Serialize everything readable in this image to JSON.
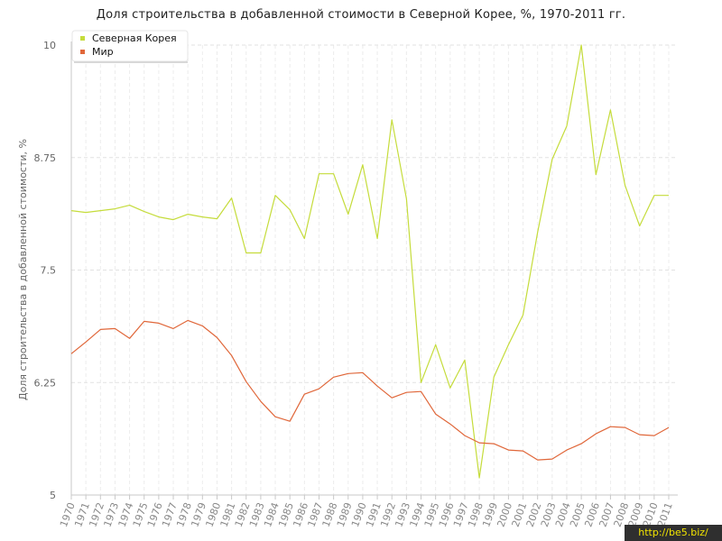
{
  "chart_data": {
    "type": "line",
    "title": "Доля строительства в добавленной стоимости в Северной Корее, %, 1970-2011 гг.",
    "ylabel": "Доля строительства в добавленной стоимости, %",
    "xlabel": "",
    "ylim": [
      5,
      10
    ],
    "yticks": [
      "5",
      "6.25",
      "7.5",
      "8.75",
      "10"
    ],
    "grid": true,
    "legend_position": "top-left",
    "categories": [
      "1970",
      "1971",
      "1972",
      "1973",
      "1974",
      "1975",
      "1976",
      "1977",
      "1978",
      "1979",
      "1980",
      "1981",
      "1982",
      "1983",
      "1984",
      "1985",
      "1986",
      "1987",
      "1988",
      "1989",
      "1990",
      "1991",
      "1992",
      "1993",
      "1994",
      "1995",
      "1996",
      "1997",
      "1998",
      "1999",
      "2000",
      "2001",
      "2002",
      "2003",
      "2004",
      "2005",
      "2006",
      "2007",
      "2008",
      "2009",
      "2010",
      "2011"
    ],
    "series": [
      {
        "name": "Северная Корея",
        "color": "#c5dc3b",
        "values": [
          8.16,
          8.14,
          8.16,
          8.18,
          8.22,
          8.15,
          8.09,
          8.06,
          8.12,
          8.09,
          8.07,
          8.3,
          7.69,
          7.69,
          8.33,
          8.17,
          7.85,
          8.57,
          8.57,
          8.12,
          8.67,
          7.85,
          9.17,
          8.29,
          6.25,
          6.67,
          6.19,
          6.5,
          5.19,
          6.31,
          6.67,
          7.0,
          7.92,
          8.73,
          9.1,
          10.0,
          8.56,
          9.28,
          8.44,
          7.99,
          8.33,
          8.33
        ]
      },
      {
        "name": "Мир",
        "color": "#e0673a",
        "values": [
          6.57,
          6.7,
          6.84,
          6.85,
          6.74,
          6.93,
          6.91,
          6.85,
          6.94,
          6.88,
          6.75,
          6.55,
          6.26,
          6.04,
          5.87,
          5.82,
          6.12,
          6.18,
          6.31,
          6.35,
          6.36,
          6.21,
          6.08,
          6.14,
          6.15,
          5.9,
          5.79,
          5.66,
          5.58,
          5.57,
          5.5,
          5.49,
          5.39,
          5.4,
          5.5,
          5.57,
          5.68,
          5.76,
          5.75,
          5.67,
          5.66,
          5.75
        ]
      }
    ]
  },
  "watermark": "http://be5.biz/"
}
